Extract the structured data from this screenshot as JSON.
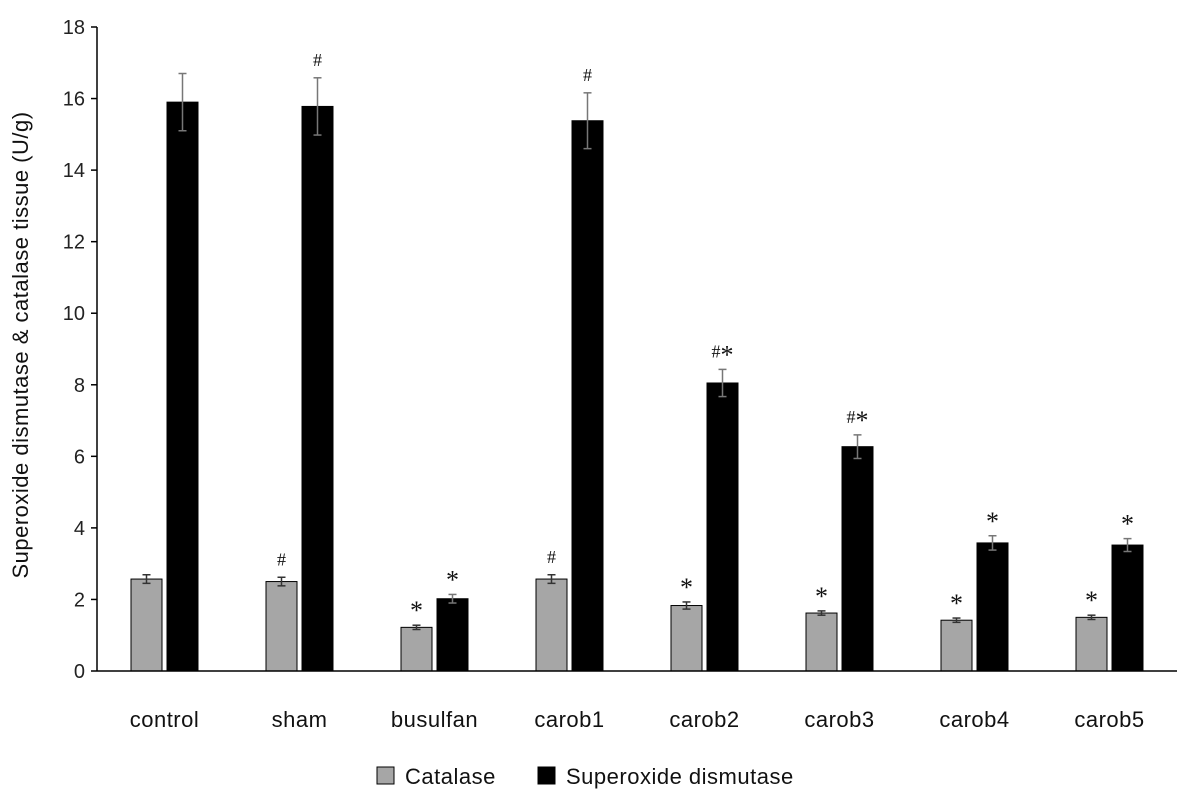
{
  "chart_data": {
    "type": "bar",
    "ylabel": "Superoxide dismutase  & catalase tissue  (U/g)",
    "xlabel": "",
    "ylim": [
      0,
      18
    ],
    "yticks": [
      "0",
      "2",
      "4",
      "6",
      "8",
      "10",
      "12",
      "14",
      "16",
      "18"
    ],
    "categories": [
      "control",
      "sham",
      "busulfan",
      "carob1",
      "carob2",
      "carob3",
      "carob4",
      "carob5"
    ],
    "legend_position": "bottom",
    "grid": false,
    "series": [
      {
        "name": "Catalase",
        "color": "#a6a6a6",
        "values": [
          2.57,
          2.5,
          1.22,
          2.57,
          1.83,
          1.62,
          1.42,
          1.5
        ],
        "errors": [
          0.12,
          0.12,
          0.06,
          0.12,
          0.1,
          0.06,
          0.06,
          0.06
        ],
        "annotations": [
          "",
          "#",
          "*",
          "#",
          "*",
          "*",
          "*",
          "*"
        ]
      },
      {
        "name": "Superoxide dismutase",
        "color": "#000000",
        "values": [
          15.9,
          15.78,
          2.02,
          15.38,
          8.05,
          6.27,
          3.58,
          3.52
        ],
        "errors": [
          0.8,
          0.8,
          0.12,
          0.78,
          0.38,
          0.33,
          0.2,
          0.18
        ],
        "annotations": [
          "",
          "#",
          "*",
          "#",
          "#*",
          "#*",
          "*",
          "*"
        ]
      }
    ]
  }
}
